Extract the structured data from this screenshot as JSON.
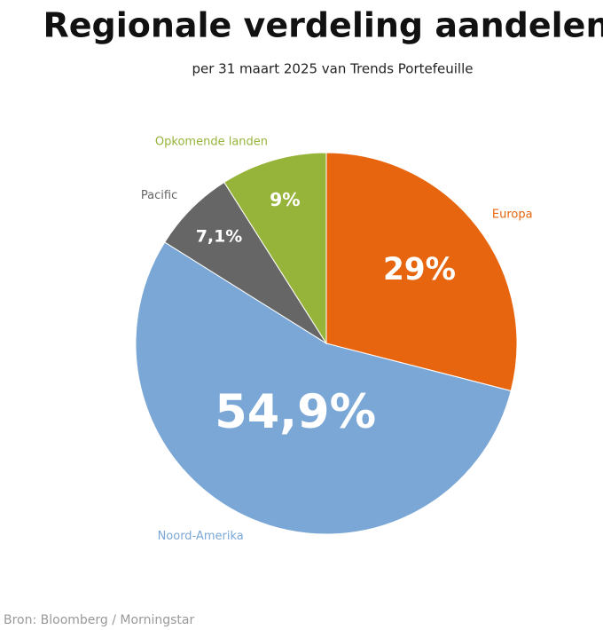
{
  "chart_data": {
    "type": "pie",
    "title": "Regionale verdeling aandelen",
    "subtitle": "per 31 maart 2025 van Trends Portefeuille",
    "source": "Bron: Bloomberg / Morningstar",
    "categories": [
      "Europa",
      "Noord-Amerika",
      "Pacific",
      "Opkomende landen"
    ],
    "values": [
      29,
      54.9,
      7.1,
      9
    ],
    "value_labels": [
      "29%",
      "54,9%",
      "7,1%",
      "9%"
    ],
    "colors": [
      "#e8650f",
      "#7ba7d6",
      "#666666",
      "#97b43a"
    ]
  }
}
